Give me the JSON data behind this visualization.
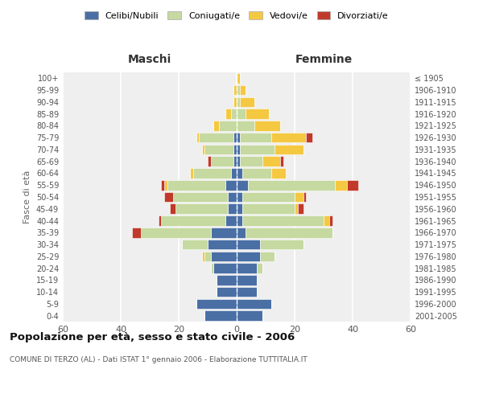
{
  "age_groups": [
    "0-4",
    "5-9",
    "10-14",
    "15-19",
    "20-24",
    "25-29",
    "30-34",
    "35-39",
    "40-44",
    "45-49",
    "50-54",
    "55-59",
    "60-64",
    "65-69",
    "70-74",
    "75-79",
    "80-84",
    "85-89",
    "90-94",
    "95-99",
    "100+"
  ],
  "birth_years": [
    "2001-2005",
    "1996-2000",
    "1991-1995",
    "1986-1990",
    "1981-1985",
    "1976-1980",
    "1971-1975",
    "1966-1970",
    "1961-1965",
    "1956-1960",
    "1951-1955",
    "1946-1950",
    "1941-1945",
    "1936-1940",
    "1931-1935",
    "1926-1930",
    "1921-1925",
    "1916-1920",
    "1911-1915",
    "1906-1910",
    "≤ 1905"
  ],
  "colors": {
    "celibi": "#4a6fa5",
    "coniugati": "#c5d9a0",
    "vedovi": "#f5c842",
    "divorziati": "#c0392b"
  },
  "maschi": {
    "celibi": [
      11,
      14,
      7,
      7,
      8,
      9,
      10,
      9,
      4,
      3,
      3,
      4,
      2,
      1,
      1,
      1,
      0,
      0,
      0,
      0,
      0
    ],
    "coniugati": [
      0,
      0,
      0,
      0,
      1,
      2,
      9,
      24,
      22,
      18,
      19,
      20,
      13,
      8,
      10,
      12,
      6,
      2,
      0,
      0,
      0
    ],
    "vedovi": [
      0,
      0,
      0,
      0,
      0,
      1,
      0,
      0,
      0,
      0,
      0,
      1,
      1,
      0,
      1,
      1,
      2,
      2,
      1,
      1,
      0
    ],
    "divorziati": [
      0,
      0,
      0,
      0,
      0,
      0,
      0,
      3,
      1,
      2,
      3,
      1,
      0,
      1,
      0,
      0,
      0,
      0,
      0,
      0,
      0
    ]
  },
  "femmine": {
    "celibi": [
      9,
      12,
      7,
      7,
      7,
      8,
      8,
      3,
      2,
      2,
      2,
      4,
      2,
      1,
      1,
      1,
      0,
      0,
      0,
      0,
      0
    ],
    "coniugati": [
      0,
      0,
      0,
      0,
      2,
      5,
      15,
      30,
      28,
      18,
      18,
      30,
      10,
      8,
      12,
      11,
      6,
      3,
      1,
      1,
      0
    ],
    "vedovi": [
      0,
      0,
      0,
      0,
      0,
      0,
      0,
      0,
      2,
      1,
      3,
      4,
      5,
      6,
      10,
      12,
      9,
      8,
      5,
      2,
      1
    ],
    "divorziati": [
      0,
      0,
      0,
      0,
      0,
      0,
      0,
      0,
      1,
      2,
      1,
      4,
      0,
      1,
      0,
      2,
      0,
      0,
      0,
      0,
      0
    ]
  },
  "xlim": 60,
  "title": "Popolazione per età, sesso e stato civile - 2006",
  "subtitle": "COMUNE DI TERZO (AL) - Dati ISTAT 1° gennaio 2006 - Elaborazione TUTTITALIA.IT",
  "xlabel_left": "Maschi",
  "xlabel_right": "Femmine",
  "ylabel_left": "Fasce di età",
  "legend_labels": [
    "Celibi/Nubili",
    "Coniugati/e",
    "Vedovi/e",
    "Divorziati/e"
  ],
  "bg_color": "#ffffff",
  "plot_bg": "#efefef"
}
